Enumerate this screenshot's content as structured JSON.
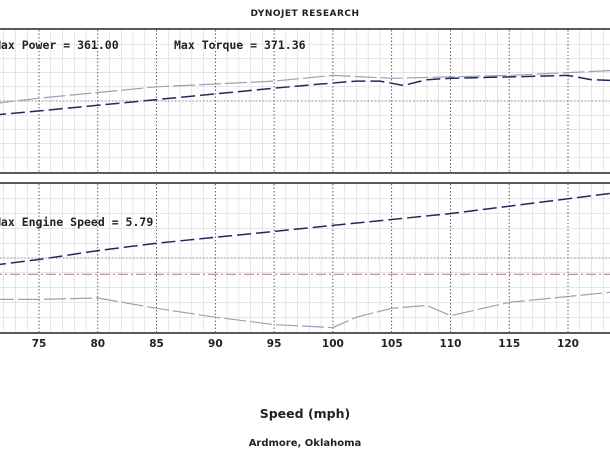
{
  "header": {
    "title": "DYNOJET RESEARCH"
  },
  "footer": {
    "location": "Ardmore, Oklahoma"
  },
  "colors": {
    "line_dark": "#1f2a5a",
    "line_light": "#9aa1b8",
    "line_pink": "#b08a95",
    "grid_major": "#3b3b3b",
    "grid_minor": "#cfcfcf",
    "frame": "#000000"
  },
  "chart_data": [
    {
      "type": "line",
      "panel": "top",
      "annotations": [
        "Max Power = 361.00",
        "Max Torque = 371.36"
      ],
      "xlim": [
        71,
        125
      ],
      "ylim": [
        0,
        100
      ],
      "series": [
        {
          "style": "dark",
          "points": [
            [
              71,
              40
            ],
            [
              75,
              43
            ],
            [
              80,
              47
            ],
            [
              85,
              51
            ],
            [
              90,
              55
            ],
            [
              95,
              59
            ],
            [
              99,
              62
            ],
            [
              102,
              64
            ],
            [
              104,
              64
            ],
            [
              106,
              61
            ],
            [
              108,
              65
            ],
            [
              110,
              66
            ],
            [
              115,
              67
            ],
            [
              120,
              68
            ],
            [
              122,
              65
            ],
            [
              125,
              64
            ]
          ]
        },
        {
          "style": "light",
          "points": [
            [
              71,
              48
            ],
            [
              75,
              52
            ],
            [
              80,
              56
            ],
            [
              85,
              60
            ],
            [
              90,
              62
            ],
            [
              95,
              64
            ],
            [
              100,
              68
            ],
            [
              105,
              66
            ],
            [
              110,
              67
            ],
            [
              115,
              68
            ],
            [
              120,
              70
            ],
            [
              125,
              72
            ]
          ]
        }
      ]
    },
    {
      "type": "line",
      "panel": "bottom",
      "annotations": [
        "Max Engine Speed = 5.79"
      ],
      "xlabel": "Speed (mph)",
      "x_ticks": [
        75,
        80,
        85,
        90,
        95,
        100,
        105,
        110,
        115,
        120
      ],
      "xlim": [
        71,
        125
      ],
      "ylim": [
        0,
        100
      ],
      "series": [
        {
          "style": "dark",
          "points": [
            [
              71,
              45
            ],
            [
              75,
              49
            ],
            [
              80,
              55
            ],
            [
              85,
              60
            ],
            [
              90,
              64
            ],
            [
              95,
              68
            ],
            [
              100,
              72
            ],
            [
              105,
              76
            ],
            [
              110,
              80
            ],
            [
              115,
              85
            ],
            [
              120,
              90
            ],
            [
              125,
              95
            ]
          ]
        },
        {
          "style": "pink",
          "points": [
            [
              71,
              39
            ],
            [
              125,
              39
            ]
          ]
        },
        {
          "style": "light",
          "points": [
            [
              71,
              22
            ],
            [
              75,
              22
            ],
            [
              80,
              23
            ],
            [
              85,
              16
            ],
            [
              90,
              10
            ],
            [
              95,
              5
            ],
            [
              100,
              3
            ],
            [
              102,
              10
            ],
            [
              105,
              16
            ],
            [
              108,
              18
            ],
            [
              110,
              11
            ],
            [
              115,
              20
            ],
            [
              120,
              24
            ],
            [
              125,
              28
            ]
          ]
        }
      ]
    }
  ]
}
